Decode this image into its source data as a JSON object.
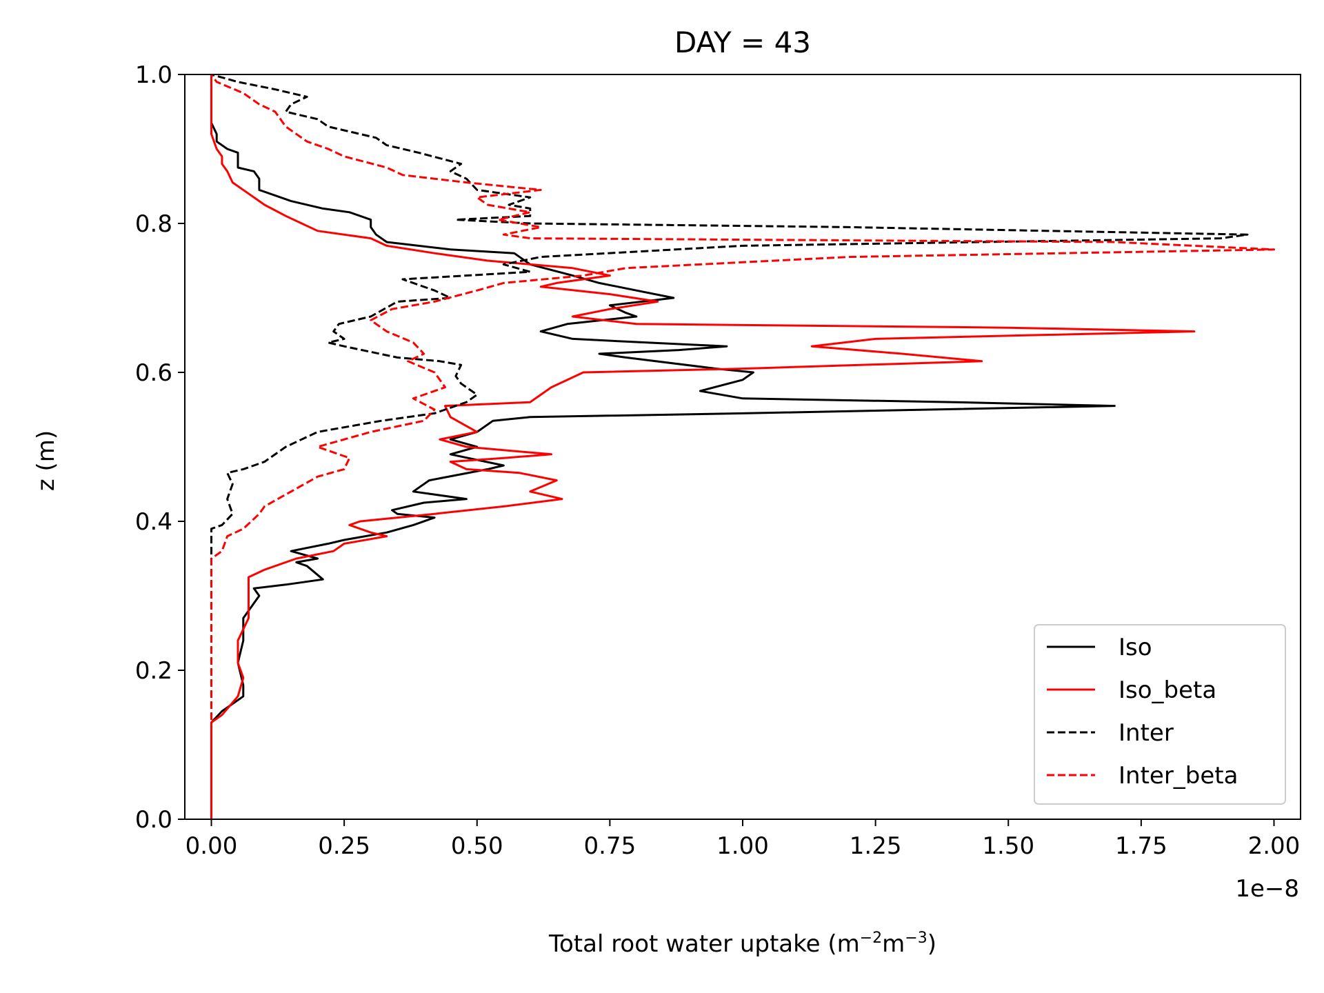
{
  "chart_data": {
    "type": "line",
    "title": "DAY = 43",
    "xlabel_main": "Total root water uptake (m",
    "xlabel_sup1": "−2",
    "xlabel_mid": "m",
    "xlabel_sup2": "−3",
    "xlabel_end": ")",
    "ylabel": "z (m)",
    "x_offset_label": "1e−8",
    "xlim": [
      -0.05,
      2.05
    ],
    "ylim": [
      0.0,
      1.0
    ],
    "x_ticks": [
      0.0,
      0.25,
      0.5,
      0.75,
      1.0,
      1.25,
      1.5,
      1.75,
      2.0
    ],
    "x_tick_labels": [
      "0.00",
      "0.25",
      "0.50",
      "0.75",
      "1.00",
      "1.25",
      "1.50",
      "1.75",
      "2.00"
    ],
    "y_ticks": [
      0.0,
      0.2,
      0.4,
      0.6,
      0.8,
      1.0
    ],
    "y_tick_labels": [
      "0.0",
      "0.2",
      "0.4",
      "0.6",
      "0.8",
      "1.0"
    ],
    "grid": false,
    "legend_position": "lower-right",
    "series": [
      {
        "name": "Iso",
        "color": "#000000",
        "dash": "solid",
        "points": [
          [
            0,
            0.0
          ],
          [
            0,
            0.13
          ],
          [
            0.02,
            0.145
          ],
          [
            0.06,
            0.165
          ],
          [
            0.06,
            0.18
          ],
          [
            0.05,
            0.21
          ],
          [
            0.06,
            0.24
          ],
          [
            0.06,
            0.27
          ],
          [
            0.08,
            0.29
          ],
          [
            0.09,
            0.3
          ],
          [
            0.08,
            0.31
          ],
          [
            0.14,
            0.315
          ],
          [
            0.21,
            0.322
          ],
          [
            0.18,
            0.34
          ],
          [
            0.16,
            0.345
          ],
          [
            0.2,
            0.35
          ],
          [
            0.15,
            0.36
          ],
          [
            0.22,
            0.37
          ],
          [
            0.25,
            0.375
          ],
          [
            0.33,
            0.385
          ],
          [
            0.38,
            0.395
          ],
          [
            0.42,
            0.405
          ],
          [
            0.35,
            0.41
          ],
          [
            0.34,
            0.415
          ],
          [
            0.4,
            0.425
          ],
          [
            0.48,
            0.43
          ],
          [
            0.38,
            0.44
          ],
          [
            0.41,
            0.455
          ],
          [
            0.52,
            0.47
          ],
          [
            0.55,
            0.475
          ],
          [
            0.45,
            0.49
          ],
          [
            0.5,
            0.5
          ],
          [
            0.45,
            0.51
          ],
          [
            0.5,
            0.52
          ],
          [
            0.53,
            0.535
          ],
          [
            0.6,
            0.54
          ],
          [
            1.0,
            0.545
          ],
          [
            1.7,
            0.555
          ],
          [
            1.4,
            0.56
          ],
          [
            1.0,
            0.565
          ],
          [
            0.92,
            0.575
          ],
          [
            1.0,
            0.59
          ],
          [
            1.02,
            0.6
          ],
          [
            0.95,
            0.605
          ],
          [
            0.78,
            0.62
          ],
          [
            0.73,
            0.625
          ],
          [
            0.88,
            0.63
          ],
          [
            0.97,
            0.635
          ],
          [
            0.82,
            0.64
          ],
          [
            0.68,
            0.645
          ],
          [
            0.62,
            0.655
          ],
          [
            0.67,
            0.665
          ],
          [
            0.8,
            0.675
          ],
          [
            0.78,
            0.68
          ],
          [
            0.75,
            0.69
          ],
          [
            0.87,
            0.7
          ],
          [
            0.8,
            0.71
          ],
          [
            0.73,
            0.72
          ],
          [
            0.68,
            0.73
          ],
          [
            0.6,
            0.745
          ],
          [
            0.57,
            0.76
          ],
          [
            0.45,
            0.765
          ],
          [
            0.33,
            0.775
          ],
          [
            0.31,
            0.785
          ],
          [
            0.3,
            0.795
          ],
          [
            0.3,
            0.805
          ],
          [
            0.26,
            0.815
          ],
          [
            0.21,
            0.82
          ],
          [
            0.15,
            0.83
          ],
          [
            0.09,
            0.845
          ],
          [
            0.09,
            0.86
          ],
          [
            0.08,
            0.87
          ],
          [
            0.05,
            0.875
          ],
          [
            0.05,
            0.885
          ],
          [
            0.05,
            0.895
          ],
          [
            0.03,
            0.9
          ],
          [
            0.01,
            0.91
          ],
          [
            0.01,
            0.92
          ],
          [
            0,
            0.935
          ],
          [
            0,
            1.0
          ]
        ]
      },
      {
        "name": "Iso_beta",
        "color": "#ff0000",
        "dash": "solid",
        "points": [
          [
            0,
            0.0
          ],
          [
            0,
            0.13
          ],
          [
            0.02,
            0.14
          ],
          [
            0.05,
            0.165
          ],
          [
            0.06,
            0.19
          ],
          [
            0.05,
            0.21
          ],
          [
            0.05,
            0.24
          ],
          [
            0.07,
            0.27
          ],
          [
            0.07,
            0.29
          ],
          [
            0.07,
            0.31
          ],
          [
            0.07,
            0.325
          ],
          [
            0.1,
            0.335
          ],
          [
            0.16,
            0.35
          ],
          [
            0.23,
            0.36
          ],
          [
            0.25,
            0.37
          ],
          [
            0.33,
            0.38
          ],
          [
            0.3,
            0.385
          ],
          [
            0.26,
            0.395
          ],
          [
            0.28,
            0.4
          ],
          [
            0.35,
            0.405
          ],
          [
            0.42,
            0.41
          ],
          [
            0.55,
            0.42
          ],
          [
            0.66,
            0.43
          ],
          [
            0.6,
            0.44
          ],
          [
            0.65,
            0.455
          ],
          [
            0.58,
            0.465
          ],
          [
            0.48,
            0.47
          ],
          [
            0.45,
            0.48
          ],
          [
            0.55,
            0.485
          ],
          [
            0.64,
            0.49
          ],
          [
            0.48,
            0.5
          ],
          [
            0.43,
            0.51
          ],
          [
            0.5,
            0.52
          ],
          [
            0.45,
            0.54
          ],
          [
            0.44,
            0.555
          ],
          [
            0.6,
            0.56
          ],
          [
            0.62,
            0.57
          ],
          [
            0.64,
            0.58
          ],
          [
            0.7,
            0.6
          ],
          [
            1.0,
            0.605
          ],
          [
            1.45,
            0.615
          ],
          [
            1.3,
            0.625
          ],
          [
            1.13,
            0.635
          ],
          [
            1.25,
            0.645
          ],
          [
            1.85,
            0.655
          ],
          [
            1.5,
            0.66
          ],
          [
            0.8,
            0.665
          ],
          [
            0.68,
            0.675
          ],
          [
            0.75,
            0.685
          ],
          [
            0.84,
            0.695
          ],
          [
            0.75,
            0.705
          ],
          [
            0.62,
            0.715
          ],
          [
            0.65,
            0.72
          ],
          [
            0.75,
            0.73
          ],
          [
            0.68,
            0.74
          ],
          [
            0.52,
            0.75
          ],
          [
            0.42,
            0.76
          ],
          [
            0.33,
            0.77
          ],
          [
            0.3,
            0.78
          ],
          [
            0.2,
            0.79
          ],
          [
            0.17,
            0.8
          ],
          [
            0.14,
            0.81
          ],
          [
            0.1,
            0.825
          ],
          [
            0.07,
            0.84
          ],
          [
            0.04,
            0.855
          ],
          [
            0.03,
            0.87
          ],
          [
            0.02,
            0.88
          ],
          [
            0.02,
            0.89
          ],
          [
            0.01,
            0.9
          ],
          [
            0,
            0.92
          ],
          [
            0,
            1.0
          ]
        ]
      },
      {
        "name": "Inter",
        "color": "#000000",
        "dash": "dashed",
        "points": [
          [
            0,
            0.0
          ],
          [
            0,
            0.34
          ],
          [
            0,
            0.39
          ],
          [
            0.02,
            0.395
          ],
          [
            0.04,
            0.41
          ],
          [
            0.03,
            0.43
          ],
          [
            0.04,
            0.45
          ],
          [
            0.03,
            0.465
          ],
          [
            0.06,
            0.47
          ],
          [
            0.1,
            0.48
          ],
          [
            0.14,
            0.5
          ],
          [
            0.2,
            0.52
          ],
          [
            0.32,
            0.535
          ],
          [
            0.42,
            0.545
          ],
          [
            0.48,
            0.56
          ],
          [
            0.5,
            0.57
          ],
          [
            0.47,
            0.585
          ],
          [
            0.46,
            0.595
          ],
          [
            0.47,
            0.61
          ],
          [
            0.43,
            0.615
          ],
          [
            0.35,
            0.62
          ],
          [
            0.25,
            0.635
          ],
          [
            0.22,
            0.64
          ],
          [
            0.25,
            0.645
          ],
          [
            0.23,
            0.655
          ],
          [
            0.24,
            0.665
          ],
          [
            0.3,
            0.675
          ],
          [
            0.35,
            0.695
          ],
          [
            0.45,
            0.7
          ],
          [
            0.42,
            0.71
          ],
          [
            0.36,
            0.725
          ],
          [
            0.6,
            0.735
          ],
          [
            0.55,
            0.745
          ],
          [
            0.62,
            0.755
          ],
          [
            1.0,
            0.77
          ],
          [
            1.9,
            0.78
          ],
          [
            1.95,
            0.785
          ],
          [
            1.2,
            0.795
          ],
          [
            0.6,
            0.8
          ],
          [
            0.46,
            0.805
          ],
          [
            0.6,
            0.81
          ],
          [
            0.6,
            0.82
          ],
          [
            0.56,
            0.825
          ],
          [
            0.6,
            0.835
          ],
          [
            0.5,
            0.845
          ],
          [
            0.48,
            0.86
          ],
          [
            0.45,
            0.87
          ],
          [
            0.47,
            0.88
          ],
          [
            0.39,
            0.895
          ],
          [
            0.33,
            0.905
          ],
          [
            0.31,
            0.915
          ],
          [
            0.22,
            0.93
          ],
          [
            0.2,
            0.94
          ],
          [
            0.14,
            0.95
          ],
          [
            0.15,
            0.96
          ],
          [
            0.18,
            0.97
          ],
          [
            0.12,
            0.98
          ],
          [
            0.05,
            0.99
          ],
          [
            0,
            1.0
          ]
        ]
      },
      {
        "name": "Inter_beta",
        "color": "#ff0000",
        "dash": "dashed",
        "points": [
          [
            0,
            0.0
          ],
          [
            0,
            0.35
          ],
          [
            0.02,
            0.36
          ],
          [
            0.03,
            0.38
          ],
          [
            0.06,
            0.39
          ],
          [
            0.09,
            0.41
          ],
          [
            0.1,
            0.42
          ],
          [
            0.15,
            0.44
          ],
          [
            0.2,
            0.46
          ],
          [
            0.25,
            0.47
          ],
          [
            0.26,
            0.485
          ],
          [
            0.2,
            0.5
          ],
          [
            0.3,
            0.52
          ],
          [
            0.4,
            0.535
          ],
          [
            0.42,
            0.55
          ],
          [
            0.38,
            0.565
          ],
          [
            0.44,
            0.58
          ],
          [
            0.42,
            0.6
          ],
          [
            0.37,
            0.615
          ],
          [
            0.4,
            0.625
          ],
          [
            0.38,
            0.64
          ],
          [
            0.33,
            0.655
          ],
          [
            0.3,
            0.67
          ],
          [
            0.34,
            0.685
          ],
          [
            0.42,
            0.695
          ],
          [
            0.5,
            0.71
          ],
          [
            0.55,
            0.72
          ],
          [
            0.7,
            0.73
          ],
          [
            0.78,
            0.74
          ],
          [
            1.2,
            0.755
          ],
          [
            2.0,
            0.765
          ],
          [
            1.7,
            0.775
          ],
          [
            0.6,
            0.78
          ],
          [
            0.55,
            0.785
          ],
          [
            0.62,
            0.795
          ],
          [
            0.54,
            0.805
          ],
          [
            0.6,
            0.815
          ],
          [
            0.52,
            0.825
          ],
          [
            0.5,
            0.835
          ],
          [
            0.62,
            0.845
          ],
          [
            0.48,
            0.855
          ],
          [
            0.36,
            0.865
          ],
          [
            0.33,
            0.875
          ],
          [
            0.25,
            0.89
          ],
          [
            0.22,
            0.9
          ],
          [
            0.18,
            0.91
          ],
          [
            0.14,
            0.93
          ],
          [
            0.12,
            0.95
          ],
          [
            0.09,
            0.96
          ],
          [
            0.06,
            0.975
          ],
          [
            0.01,
            0.99
          ],
          [
            0,
            1.0
          ]
        ]
      }
    ]
  }
}
